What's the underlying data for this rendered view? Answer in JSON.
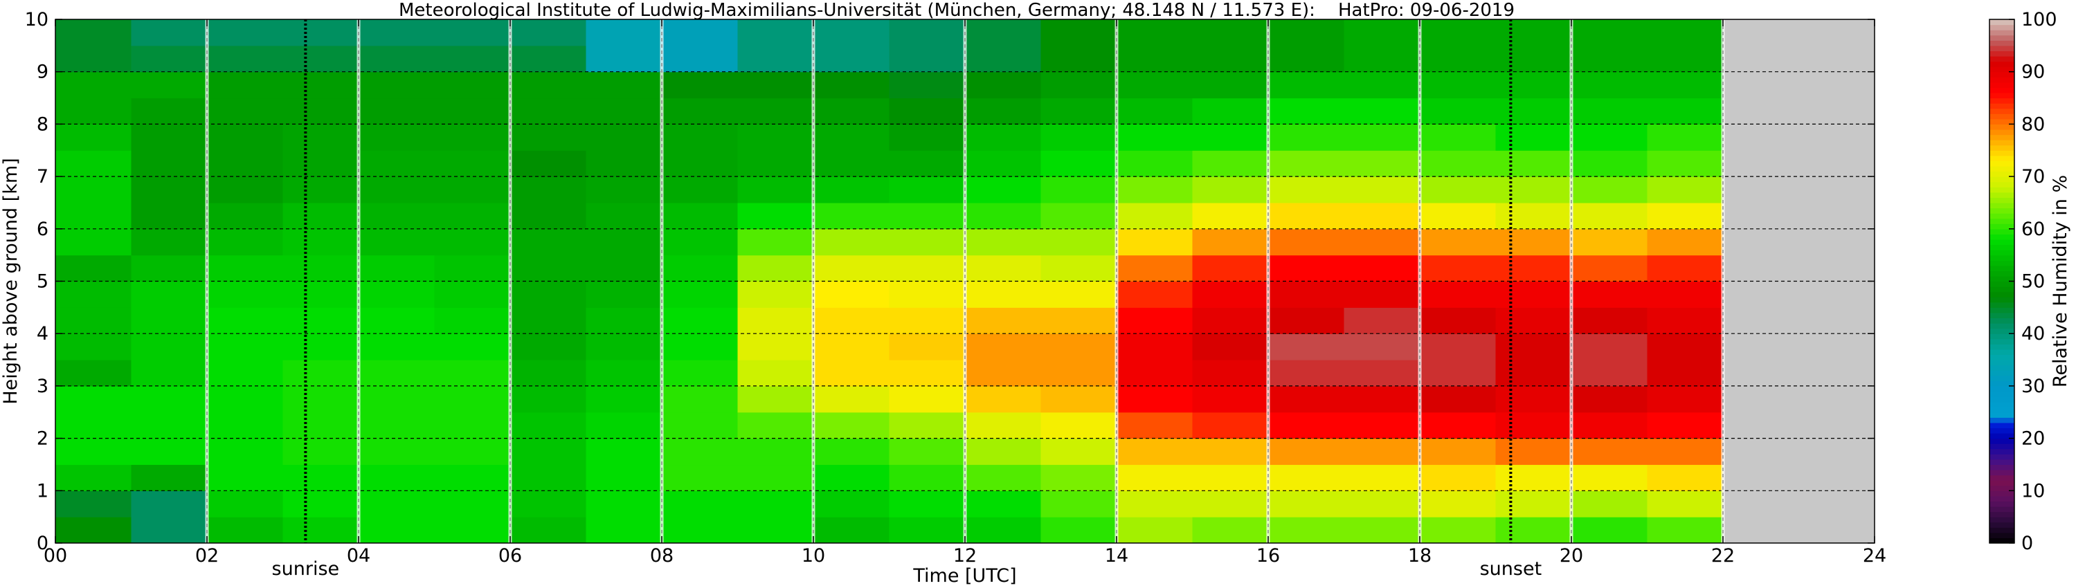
{
  "title": "Meteorological Institute of Ludwig-Maximilians-Universität (München, Germany; 48.148 N / 11.573 E):    HatPro: 09-06-2019",
  "chart_data": {
    "type": "heatmap",
    "title": "Meteorological Institute of Ludwig-Maximilians-Universität (München, Germany; 48.148 N / 11.573 E):    HatPro: 09-06-2019",
    "xlabel": "Time [UTC]",
    "ylabel": "Height above ground [km]",
    "xlim": [
      0,
      24
    ],
    "ylim": [
      0,
      10
    ],
    "x_ticks": [
      0,
      2,
      4,
      6,
      8,
      10,
      12,
      14,
      16,
      18,
      20,
      22,
      24
    ],
    "x_tick_labels": [
      "00",
      "02",
      "04",
      "06",
      "08",
      "10",
      "12",
      "14",
      "16",
      "18",
      "20",
      "22",
      "24"
    ],
    "y_ticks": [
      0,
      1,
      2,
      3,
      4,
      5,
      6,
      7,
      8,
      9,
      10
    ],
    "y_tick_labels": [
      "0",
      "1",
      "2",
      "3",
      "4",
      "5",
      "6",
      "7",
      "8",
      "9",
      "10"
    ],
    "grid": true,
    "data_end_hour": 22,
    "no_data_color": "#c8c8c8",
    "heights_km": [
      0.25,
      0.75,
      1.25,
      1.75,
      2.25,
      2.75,
      3.25,
      3.75,
      4.25,
      4.75,
      5.25,
      5.75,
      6.25,
      6.75,
      7.25,
      7.75,
      8.25,
      8.75,
      9.25,
      9.75
    ],
    "times_hour": [
      0.5,
      1.5,
      2.5,
      3.5,
      4.5,
      5.5,
      6.5,
      7.5,
      8.5,
      9.5,
      10.5,
      11.5,
      12.5,
      13.5,
      14.5,
      15.5,
      16.5,
      17.5,
      18.5,
      19.5,
      20.5,
      21.5
    ],
    "relative_humidity": [
      [
        48,
        45,
        55,
        58,
        58,
        58,
        52,
        54,
        54,
        54,
        52,
        56,
        56,
        56,
        56,
        54,
        52,
        52,
        45,
        45
      ],
      [
        42,
        42,
        52,
        58,
        58,
        58,
        56,
        56,
        56,
        56,
        54,
        52,
        50,
        50,
        50,
        50,
        50,
        52,
        44,
        42
      ],
      [
        54,
        56,
        58,
        58,
        58,
        58,
        58,
        58,
        58,
        57,
        56,
        54,
        52,
        50,
        50,
        50,
        50,
        50,
        44,
        42
      ],
      [
        56,
        58,
        58,
        59,
        59,
        59,
        59,
        58,
        58,
        57,
        56,
        55,
        54,
        52,
        51,
        51,
        50,
        50,
        44,
        42
      ],
      [
        58,
        58,
        58,
        59,
        59,
        59,
        59,
        58,
        58,
        57,
        56,
        54,
        53,
        52,
        52,
        51,
        50,
        50,
        44,
        42
      ],
      [
        58,
        58,
        58,
        59,
        59,
        59,
        59,
        58,
        57,
        56,
        55,
        54,
        53,
        52,
        52,
        51,
        50,
        50,
        44,
        42
      ],
      [
        54,
        55,
        55,
        55,
        55,
        54,
        53,
        52,
        52,
        52,
        52,
        52,
        50,
        50,
        48,
        50,
        50,
        50,
        44,
        42
      ],
      [
        58,
        58,
        58,
        58,
        57,
        56,
        55,
        54,
        54,
        53,
        52,
        52,
        52,
        51,
        50,
        50,
        50,
        50,
        34,
        34
      ],
      [
        58,
        58,
        60,
        60,
        60,
        60,
        59,
        58,
        58,
        57,
        56,
        55,
        54,
        52,
        51,
        51,
        50,
        48,
        33,
        33
      ],
      [
        58,
        58,
        60,
        60,
        62,
        66,
        68,
        70,
        70,
        68,
        66,
        62,
        58,
        54,
        52,
        52,
        50,
        48,
        40,
        40
      ],
      [
        54,
        56,
        58,
        60,
        64,
        70,
        74,
        74,
        74,
        73,
        70,
        66,
        60,
        55,
        52,
        52,
        50,
        48,
        40,
        40
      ],
      [
        56,
        58,
        60,
        62,
        66,
        72,
        74,
        75,
        74,
        72,
        70,
        66,
        60,
        56,
        52,
        50,
        48,
        46,
        42,
        42
      ],
      [
        56,
        58,
        62,
        66,
        70,
        75,
        78,
        78,
        76,
        72,
        70,
        66,
        60,
        58,
        55,
        54,
        50,
        48,
        44,
        44
      ],
      [
        60,
        62,
        64,
        68,
        72,
        76,
        78,
        78,
        76,
        72,
        68,
        66,
        62,
        60,
        58,
        56,
        52,
        50,
        48,
        48
      ],
      [
        66,
        68,
        72,
        76,
        82,
        86,
        88,
        88,
        86,
        84,
        80,
        74,
        68,
        64,
        60,
        58,
        54,
        52,
        50,
        50
      ],
      [
        64,
        68,
        72,
        76,
        84,
        88,
        90,
        92,
        90,
        88,
        84,
        78,
        72,
        66,
        62,
        58,
        56,
        52,
        50,
        50
      ],
      [
        64,
        68,
        72,
        78,
        86,
        90,
        94,
        95,
        92,
        90,
        86,
        80,
        74,
        68,
        64,
        60,
        58,
        54,
        50,
        50
      ],
      [
        64,
        68,
        72,
        78,
        86,
        90,
        94,
        95,
        94,
        90,
        86,
        80,
        74,
        68,
        64,
        60,
        58,
        54,
        52,
        52
      ],
      [
        64,
        70,
        74,
        78,
        86,
        92,
        94,
        94,
        92,
        88,
        84,
        78,
        72,
        66,
        62,
        60,
        56,
        54,
        52,
        52
      ],
      [
        62,
        68,
        72,
        80,
        88,
        90,
        92,
        92,
        90,
        88,
        84,
        78,
        70,
        66,
        62,
        58,
        56,
        54,
        52,
        52
      ],
      [
        60,
        66,
        72,
        80,
        88,
        92,
        94,
        94,
        92,
        88,
        82,
        76,
        70,
        64,
        60,
        58,
        56,
        54,
        52,
        52
      ],
      [
        62,
        68,
        74,
        80,
        86,
        90,
        92,
        92,
        90,
        88,
        84,
        78,
        72,
        66,
        62,
        60,
        56,
        54,
        52,
        52
      ]
    ],
    "annotations": [
      {
        "hour": 3.3,
        "label": "sunrise"
      },
      {
        "hour": 19.2,
        "label": "sunset"
      }
    ],
    "colorbar": {
      "label": "Relative Humidity in %",
      "ticks": [
        0,
        10,
        20,
        30,
        40,
        50,
        60,
        70,
        80,
        90,
        100
      ],
      "tick_labels": [
        "0",
        "10",
        "20",
        "30",
        "40",
        "50",
        "60",
        "70",
        "80",
        "90",
        "100"
      ],
      "stops": [
        {
          "value": 0,
          "color": "#000000"
        },
        {
          "value": 4,
          "color": "#2a0a3a"
        },
        {
          "value": 8,
          "color": "#5a1060"
        },
        {
          "value": 12,
          "color": "#7a1050"
        },
        {
          "value": 16,
          "color": "#40108a"
        },
        {
          "value": 20,
          "color": "#0000b0"
        },
        {
          "value": 23,
          "color": "#0022dd"
        },
        {
          "value": 24,
          "color": "#00a0d0"
        },
        {
          "value": 30,
          "color": "#0098c8"
        },
        {
          "value": 36,
          "color": "#00a8a8"
        },
        {
          "value": 42,
          "color": "#009060"
        },
        {
          "value": 47,
          "color": "#008a00"
        },
        {
          "value": 52,
          "color": "#00aa00"
        },
        {
          "value": 58,
          "color": "#00dd00"
        },
        {
          "value": 63,
          "color": "#66ee00"
        },
        {
          "value": 68,
          "color": "#ccf200"
        },
        {
          "value": 73,
          "color": "#ffee00"
        },
        {
          "value": 77,
          "color": "#ffaa00"
        },
        {
          "value": 82,
          "color": "#ff5000"
        },
        {
          "value": 86,
          "color": "#ff0000"
        },
        {
          "value": 92,
          "color": "#d80000"
        },
        {
          "value": 96,
          "color": "#c06060"
        },
        {
          "value": 100,
          "color": "#d8c8c0"
        }
      ]
    }
  }
}
